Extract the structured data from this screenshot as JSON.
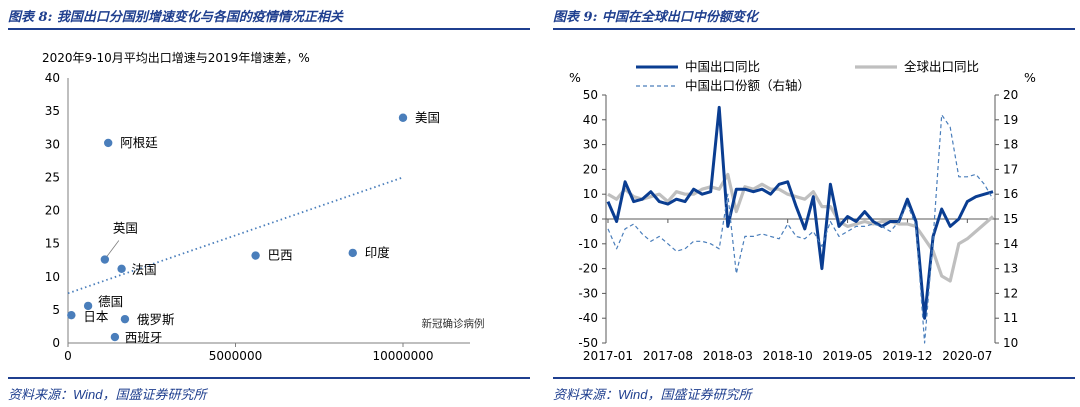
{
  "left": {
    "caption": "图表 8:  我国出口分国别增速变化与各国的疫情情况正相关",
    "source_prefix": "资料来源：",
    "source_wind": "Wind",
    "source_suffix": "，国盛证券研究所"
  },
  "right": {
    "caption": "图表 9:  中国在全球出口中份额变化",
    "source_prefix": "资料来源：",
    "source_wind": "Wind",
    "source_suffix": "，国盛证券研究所"
  },
  "colors": {
    "brand": "#1f3f8f",
    "scatter_point": "#4a7ebb",
    "trend": "#4a7ebb",
    "china_line": "#0a3d91",
    "global_line": "#bfbfbf",
    "share_line": "#4a7ebb"
  },
  "chart_data": [
    {
      "type": "scatter",
      "title": "2020年9-10月平均出口增速与2019年增速差，%",
      "xlim": [
        0,
        12000000
      ],
      "ylim": [
        0,
        40
      ],
      "x_ticks": [
        0,
        5000000,
        10000000
      ],
      "y_ticks": [
        0,
        5,
        10,
        15,
        20,
        25,
        30,
        35,
        40
      ],
      "grid": false,
      "trendline": {
        "style": "dotted",
        "from": [
          0,
          7.5
        ],
        "to": [
          10000000,
          25
        ]
      },
      "annotation": "新冠确诊病例",
      "points": [
        {
          "label": "美国",
          "x": 10000000,
          "y": 34
        },
        {
          "label": "阿根廷",
          "x": 1200000,
          "y": 30.2
        },
        {
          "label": "英国",
          "x": 1100000,
          "y": 12.6
        },
        {
          "label": "法国",
          "x": 1600000,
          "y": 11.2
        },
        {
          "label": "巴西",
          "x": 5600000,
          "y": 13.2
        },
        {
          "label": "印度",
          "x": 8500000,
          "y": 13.6
        },
        {
          "label": "德国",
          "x": 600000,
          "y": 5.6
        },
        {
          "label": "日本",
          "x": 100000,
          "y": 4.2
        },
        {
          "label": "俄罗斯",
          "x": 1700000,
          "y": 3.6
        },
        {
          "label": "西班牙",
          "x": 1400000,
          "y": 0.9
        }
      ]
    },
    {
      "type": "line",
      "y_left_unit": "%",
      "y_right_unit": "%",
      "ylim_left": [
        -50,
        50
      ],
      "ylim_right": [
        10,
        20
      ],
      "y_left_ticks": [
        50,
        40,
        30,
        20,
        10,
        0,
        -10,
        -20,
        -30,
        -40,
        -50
      ],
      "y_right_ticks": [
        20,
        19,
        18,
        17,
        16,
        15,
        14,
        13,
        12,
        11,
        10
      ],
      "x_tick_labels": [
        "2017-01",
        "2017-08",
        "2018-03",
        "2018-10",
        "2019-05",
        "2019-12",
        "2020-07"
      ],
      "x": [
        "2017-01",
        "2017-02",
        "2017-03",
        "2017-04",
        "2017-05",
        "2017-06",
        "2017-07",
        "2017-08",
        "2017-09",
        "2017-10",
        "2017-11",
        "2017-12",
        "2018-01",
        "2018-02",
        "2018-03",
        "2018-04",
        "2018-05",
        "2018-06",
        "2018-07",
        "2018-08",
        "2018-09",
        "2018-10",
        "2018-11",
        "2018-12",
        "2019-01",
        "2019-02",
        "2019-03",
        "2019-04",
        "2019-05",
        "2019-06",
        "2019-07",
        "2019-08",
        "2019-09",
        "2019-10",
        "2019-11",
        "2019-12",
        "2020-01",
        "2020-02",
        "2020-03",
        "2020-04",
        "2020-05",
        "2020-06",
        "2020-07",
        "2020-08",
        "2020-09",
        "2020-10"
      ],
      "grid": false,
      "legend_position": "top",
      "series": [
        {
          "name": "中国出口同比",
          "axis": "left",
          "style": "solid",
          "values": [
            7,
            -1,
            15,
            7,
            8,
            11,
            7,
            6,
            8,
            7,
            12,
            10,
            11,
            45,
            -3,
            12,
            12,
            11,
            12,
            10,
            14,
            15,
            5,
            -4,
            9,
            -20,
            14,
            -3,
            1,
            -1,
            3,
            -1,
            -3,
            -1,
            -1,
            8,
            -1,
            -40,
            -7,
            4,
            -3,
            0,
            7,
            9,
            10,
            11
          ]
        },
        {
          "name": "全球出口同比",
          "axis": "left",
          "style": "solid",
          "values": [
            10,
            8,
            12,
            9,
            8,
            9,
            10,
            7,
            11,
            10,
            10,
            12,
            13,
            12,
            18,
            3,
            13,
            12,
            14,
            12,
            12,
            10,
            9,
            8,
            11,
            5,
            5,
            -1,
            -3,
            -2,
            -1,
            -2,
            -1,
            -1,
            -2,
            -2,
            -3,
            -8,
            -13,
            -23,
            -25,
            -10,
            -8,
            -5,
            -2,
            1
          ]
        },
        {
          "name": "中国出口份额（右轴）",
          "axis": "right",
          "style": "dashed",
          "values": [
            14.6,
            13.8,
            14.6,
            14.8,
            14.4,
            14.1,
            14.3,
            14.0,
            13.7,
            13.8,
            14.1,
            14.1,
            14.0,
            13.8,
            16.0,
            12.8,
            14.3,
            14.3,
            14.4,
            14.3,
            14.2,
            14.8,
            14.3,
            14.2,
            14.5,
            13.9,
            14.9,
            14.3,
            14.5,
            14.7,
            14.7,
            14.8,
            14.7,
            14.5,
            14.9,
            15.6,
            14.7,
            10.0,
            14.2,
            19.2,
            18.7,
            16.7,
            16.7,
            16.8,
            16.4,
            15.8
          ]
        }
      ]
    }
  ]
}
